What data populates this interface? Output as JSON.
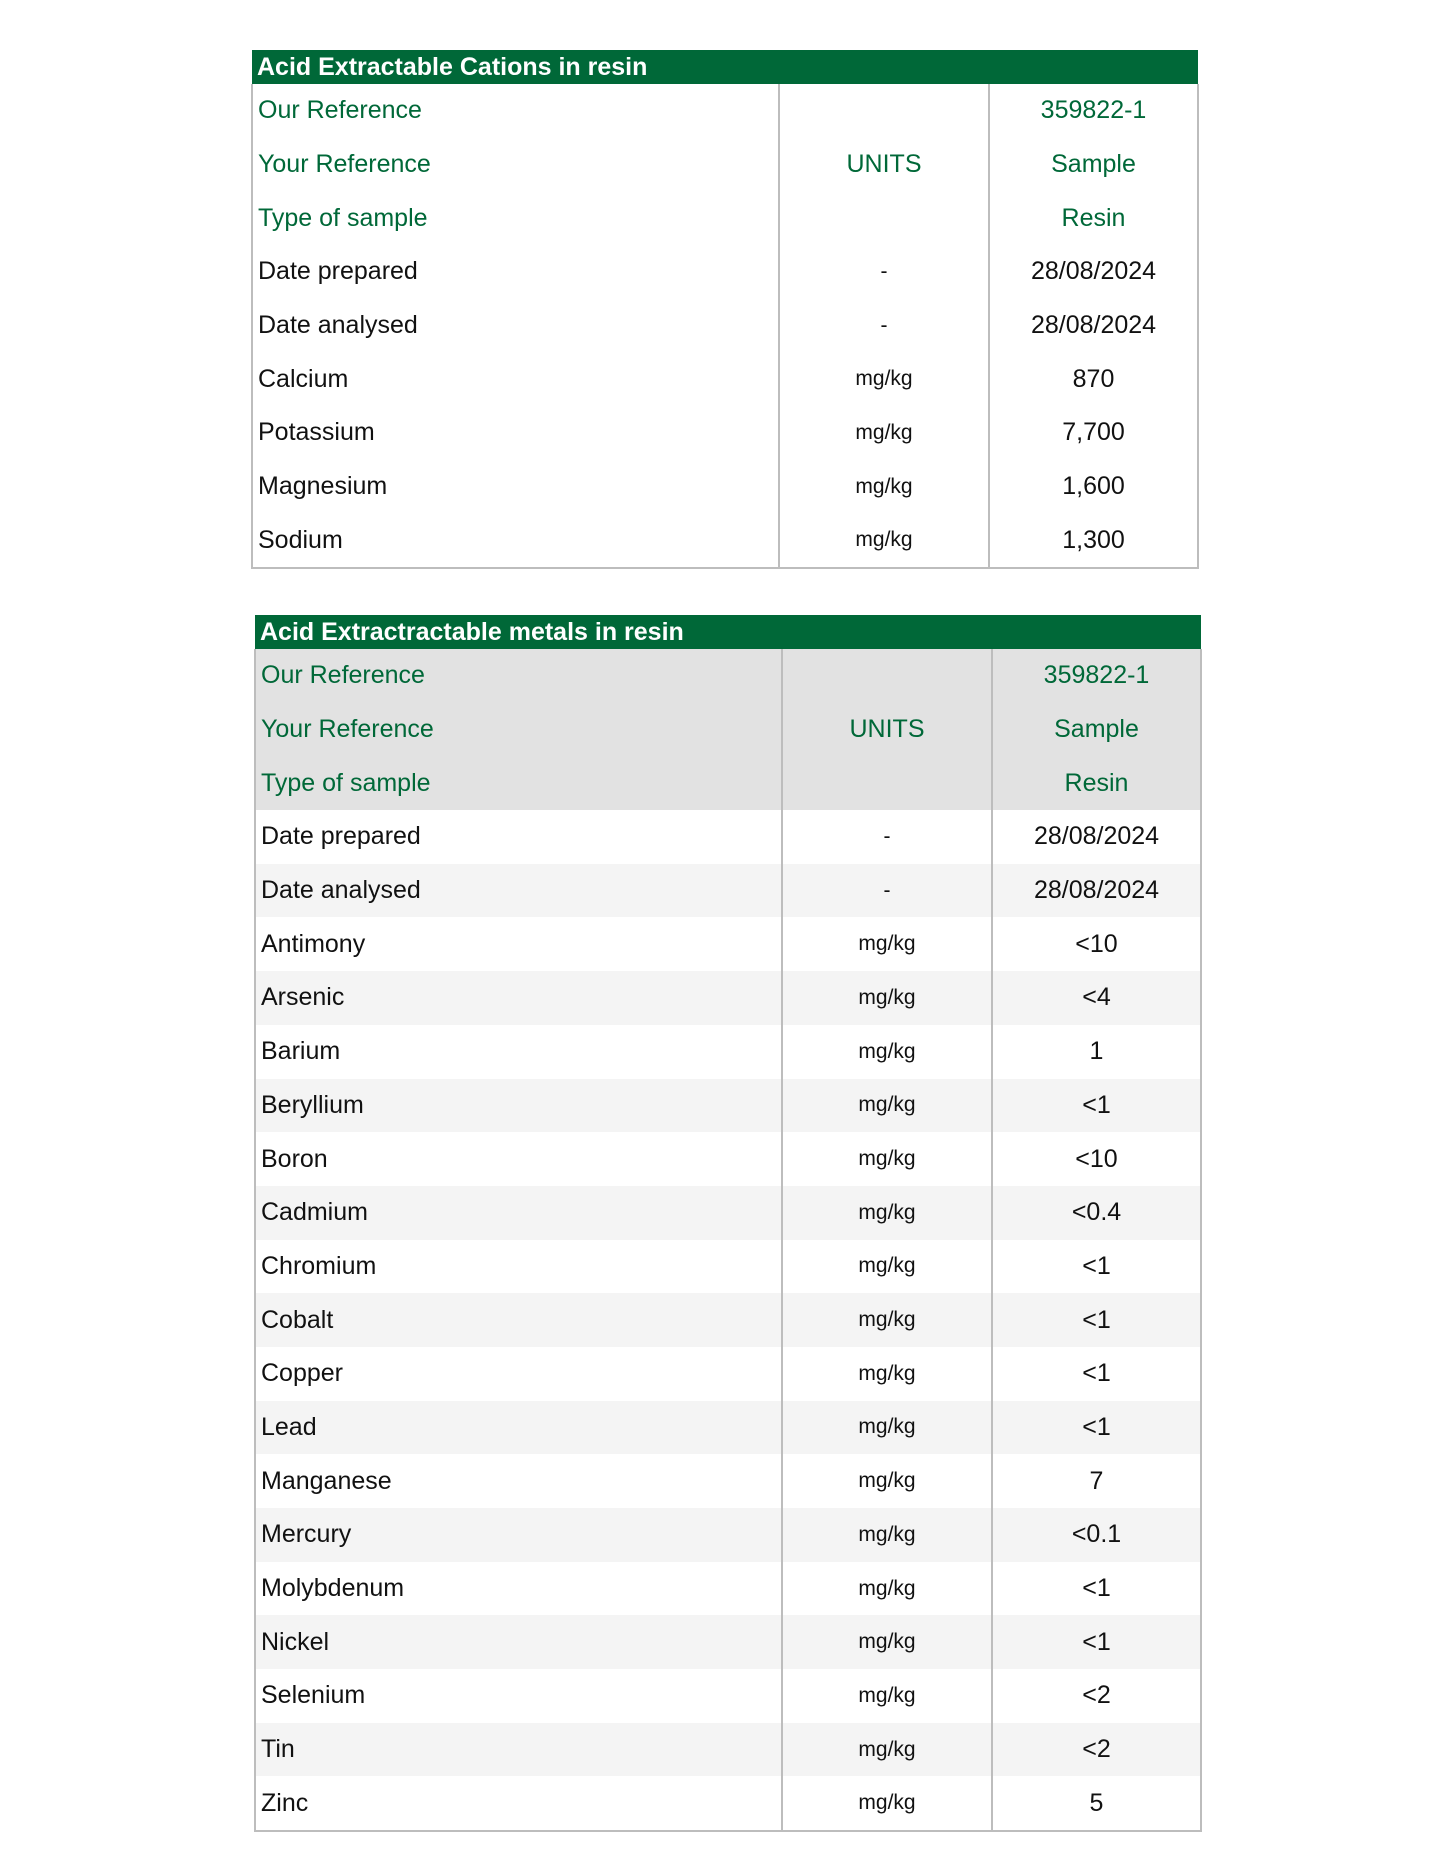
{
  "colors": {
    "header_bg": "#006838",
    "reference_text": "#006838",
    "reference_row_bg": "#e2e2e2",
    "stripe_bg": "#f4f4f4"
  },
  "tables": [
    {
      "title": "Acid Extractable Cations in resin",
      "rows": [
        {
          "label": "Our Reference",
          "units": "",
          "value": "359822-1",
          "ref": true
        },
        {
          "label": "Your Reference",
          "units": "UNITS",
          "value": "Sample",
          "ref": true
        },
        {
          "label": "Type of sample",
          "units": "",
          "value": "Resin",
          "ref": true
        },
        {
          "label": "Date prepared",
          "units": "-",
          "value": "28/08/2024"
        },
        {
          "label": "Date analysed",
          "units": "-",
          "value": "28/08/2024"
        },
        {
          "label": "Calcium",
          "units": "mg/kg",
          "value": "870"
        },
        {
          "label": "Potassium",
          "units": "mg/kg",
          "value": "7,700"
        },
        {
          "label": "Magnesium",
          "units": "mg/kg",
          "value": "1,600"
        },
        {
          "label": "Sodium",
          "units": "mg/kg",
          "value": "1,300"
        }
      ]
    },
    {
      "title": "Acid Extractractable metals in resin",
      "rows": [
        {
          "label": "Our Reference",
          "units": "",
          "value": "359822-1",
          "ref": true
        },
        {
          "label": "Your Reference",
          "units": "UNITS",
          "value": "Sample",
          "ref": true
        },
        {
          "label": "Type of sample",
          "units": "",
          "value": "Resin",
          "ref": true
        },
        {
          "label": "Date prepared",
          "units": "-",
          "value": "28/08/2024"
        },
        {
          "label": "Date analysed",
          "units": "-",
          "value": "28/08/2024"
        },
        {
          "label": "Antimony",
          "units": "mg/kg",
          "value": "<10"
        },
        {
          "label": "Arsenic",
          "units": "mg/kg",
          "value": "<4"
        },
        {
          "label": "Barium",
          "units": "mg/kg",
          "value": "1"
        },
        {
          "label": "Beryllium",
          "units": "mg/kg",
          "value": "<1"
        },
        {
          "label": "Boron",
          "units": "mg/kg",
          "value": "<10"
        },
        {
          "label": "Cadmium",
          "units": "mg/kg",
          "value": "<0.4"
        },
        {
          "label": "Chromium",
          "units": "mg/kg",
          "value": "<1"
        },
        {
          "label": "Cobalt",
          "units": "mg/kg",
          "value": "<1"
        },
        {
          "label": "Copper",
          "units": "mg/kg",
          "value": "<1"
        },
        {
          "label": "Lead",
          "units": "mg/kg",
          "value": "<1"
        },
        {
          "label": "Manganese",
          "units": "mg/kg",
          "value": "7"
        },
        {
          "label": "Mercury",
          "units": "mg/kg",
          "value": "<0.1"
        },
        {
          "label": "Molybdenum",
          "units": "mg/kg",
          "value": "<1"
        },
        {
          "label": "Nickel",
          "units": "mg/kg",
          "value": "<1"
        },
        {
          "label": "Selenium",
          "units": "mg/kg",
          "value": "<2"
        },
        {
          "label": "Tin",
          "units": "mg/kg",
          "value": "<2"
        },
        {
          "label": "Zinc",
          "units": "mg/kg",
          "value": "5"
        }
      ]
    }
  ]
}
